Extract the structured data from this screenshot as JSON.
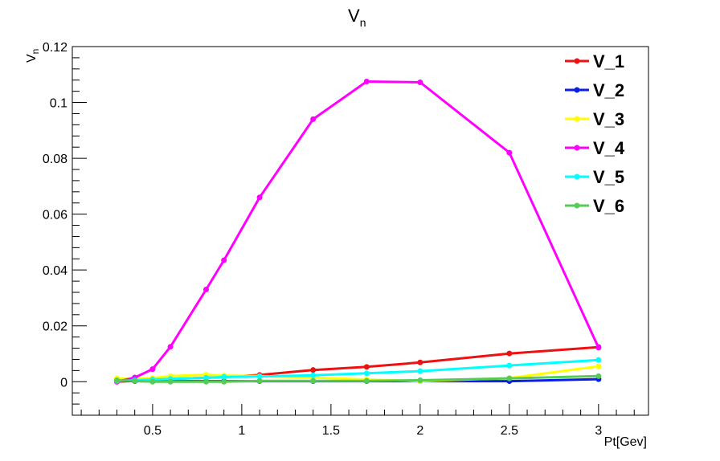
{
  "chart_data": {
    "type": "line",
    "title": "V_n",
    "title_main": "V",
    "title_sub": "n",
    "xlabel": "Pt[Gev]",
    "ylabel": "V_n",
    "ylabel_main": "V",
    "ylabel_sub": "n",
    "xlim": [
      0.05,
      3.28
    ],
    "ylim": [
      -0.012,
      0.12
    ],
    "xticks": [
      0.5,
      1,
      1.5,
      2,
      2.5,
      3
    ],
    "xtick_labels": [
      "0.5",
      "1",
      "1.5",
      "2",
      "2.5",
      "3"
    ],
    "yticks": [
      0,
      0.02,
      0.04,
      0.06,
      0.08,
      0.1,
      0.12
    ],
    "ytick_labels": [
      "0",
      "0.02",
      "0.04",
      "0.06",
      "0.08",
      "0.1",
      "0.12"
    ],
    "grid": false,
    "legend_position": "top-right",
    "series": [
      {
        "name": "V_1",
        "color": "#ee1111",
        "x": [
          0.3,
          0.4,
          0.5,
          0.6,
          0.8,
          0.9,
          1.1,
          1.4,
          1.7,
          2.0,
          2.5,
          3.0
        ],
        "y": [
          0.0,
          0.0003,
          0.0007,
          0.001,
          0.0014,
          0.0017,
          0.0024,
          0.0042,
          0.0053,
          0.0069,
          0.0101,
          0.0124
        ]
      },
      {
        "name": "V_2",
        "color": "#0a1ee6",
        "x": [
          0.3,
          0.4,
          0.5,
          0.6,
          0.8,
          0.9,
          1.1,
          1.4,
          1.7,
          2.0,
          2.5,
          3.0
        ],
        "y": [
          0.0003,
          0.0002,
          0.0002,
          0.0002,
          0.0002,
          0.0002,
          0.0002,
          0.0002,
          0.0002,
          0.0002,
          0.0002,
          0.0009
        ]
      },
      {
        "name": "V_3",
        "color": "#ffff00",
        "x": [
          0.3,
          0.4,
          0.5,
          0.6,
          0.8,
          0.9,
          1.1,
          1.4,
          1.7,
          2.0,
          2.5,
          3.0
        ],
        "y": [
          0.0012,
          0.001,
          0.0013,
          0.002,
          0.0025,
          0.0022,
          0.002,
          0.0015,
          0.0008,
          0.0002,
          0.0013,
          0.0055
        ]
      },
      {
        "name": "V_4",
        "color": "#ff00ff",
        "x": [
          0.3,
          0.4,
          0.5,
          0.6,
          0.8,
          0.9,
          1.1,
          1.4,
          1.7,
          2.0,
          2.5,
          3.0
        ],
        "y": [
          0.0,
          0.0015,
          0.0045,
          0.0125,
          0.033,
          0.0435,
          0.066,
          0.094,
          0.1075,
          0.1072,
          0.082,
          0.0122
        ]
      },
      {
        "name": "V_5",
        "color": "#00ffff",
        "x": [
          0.3,
          0.4,
          0.5,
          0.6,
          0.8,
          0.9,
          1.1,
          1.4,
          1.7,
          2.0,
          2.5,
          3.0
        ],
        "y": [
          0.0003,
          0.0005,
          0.0008,
          0.001,
          0.0014,
          0.0017,
          0.0019,
          0.0023,
          0.003,
          0.0038,
          0.0058,
          0.0078
        ]
      },
      {
        "name": "V_6",
        "color": "#55cc55",
        "x": [
          0.3,
          0.4,
          0.5,
          0.6,
          0.8,
          0.9,
          1.1,
          1.4,
          1.7,
          2.0,
          2.5,
          3.0
        ],
        "y": [
          0.0005,
          0.0003,
          0.0,
          0.0,
          0.0,
          0.0,
          0.0003,
          0.0003,
          0.0003,
          0.0005,
          0.0012,
          0.002
        ]
      }
    ]
  }
}
